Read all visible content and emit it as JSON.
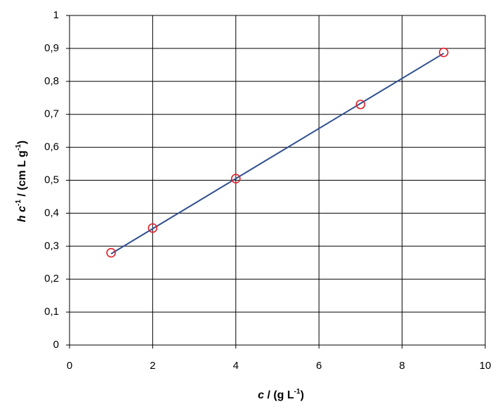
{
  "chart_data": {
    "type": "scatter",
    "x_label": {
      "parts": [
        "c",
        " / (g L",
        "-1",
        ")"
      ]
    },
    "y_label": {
      "parts": [
        "h c",
        "-1",
        " / (cm  L g",
        "-1",
        ")"
      ]
    },
    "xlim": [
      0,
      10
    ],
    "xticks": [
      0,
      2,
      4,
      6,
      8,
      10
    ],
    "ylim": [
      0,
      1
    ],
    "yticks": [
      0,
      {
        "value": 0.1,
        "label": "0,1"
      },
      {
        "value": 0.2,
        "label": "0,2"
      },
      {
        "value": 0.3,
        "label": "0,3"
      },
      {
        "value": 0.4,
        "label": "0,4"
      },
      {
        "value": 0.5,
        "label": "0,5"
      },
      {
        "value": 0.6,
        "label": "0,6"
      },
      {
        "value": 0.7,
        "label": "0,7"
      },
      {
        "value": 0.8,
        "label": "0,8"
      },
      {
        "value": 0.9,
        "label": "0,9"
      },
      1
    ],
    "grid": true,
    "series": [
      {
        "type": "scatter",
        "color": "#e0202a",
        "x": [
          1,
          2,
          4,
          7,
          9
        ],
        "values": [
          0.28,
          0.355,
          0.505,
          0.73,
          0.888
        ]
      },
      {
        "type": "line",
        "color": "#2f4f8f",
        "x": [
          1,
          9
        ],
        "values": [
          0.277,
          0.885
        ]
      }
    ]
  }
}
